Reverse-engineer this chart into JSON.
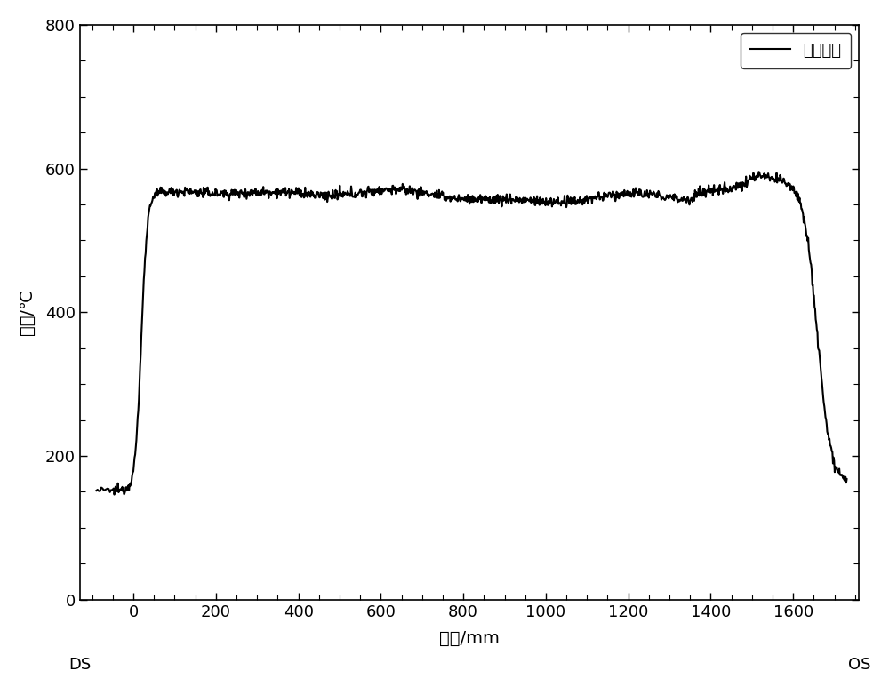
{
  "title": "",
  "xlabel": "宽度/mm",
  "ylabel": "温度/℃",
  "xlim": [
    -130,
    1760
  ],
  "ylim": [
    0,
    800
  ],
  "xticks": [
    0,
    200,
    400,
    600,
    800,
    1000,
    1200,
    1400,
    1600
  ],
  "yticks": [
    0,
    200,
    400,
    600,
    800
  ],
  "legend_label": "温度曲线",
  "ds_label": "DS",
  "os_label": "OS",
  "line_color": "#000000",
  "line_width": 1.5,
  "background_color": "#ffffff",
  "ds_x_data": -50,
  "os_x_data": 1730
}
